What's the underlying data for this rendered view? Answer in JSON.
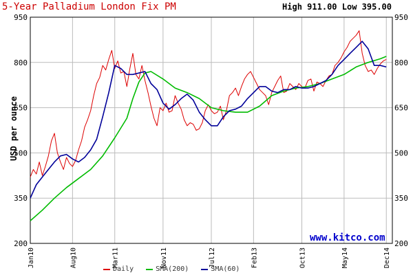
{
  "header": {
    "title": "5-Year Palladium London Fix PM",
    "high_low": "High 911.00 Low 395.00"
  },
  "watermark": "www.kitco.com",
  "colors": {
    "daily": "#dd0000",
    "sma200": "#00bb00",
    "sma60": "#000099",
    "grid": "#bbbbbb",
    "title": "#cc0000",
    "watermark": "#0000cc"
  },
  "chart_data": {
    "type": "line",
    "title": "5-Year Palladium London Fix PM",
    "ylabel": "USD per ounce",
    "ylim": [
      200,
      950
    ],
    "yticks": [
      200,
      350,
      500,
      650,
      800,
      950
    ],
    "xlim": [
      0,
      60
    ],
    "xticks": [
      {
        "label": "Jan10",
        "x": 0
      },
      {
        "label": "Aug10",
        "x": 7
      },
      {
        "label": "Mar11",
        "x": 14
      },
      {
        "label": "Nov11",
        "x": 22
      },
      {
        "label": "Jul12",
        "x": 30
      },
      {
        "label": "Feb13",
        "x": 37
      },
      {
        "label": "Oct13",
        "x": 45
      },
      {
        "label": "May14",
        "x": 52
      },
      {
        "label": "Dec14",
        "x": 59
      }
    ],
    "high": 911.0,
    "low": 395.0,
    "grid": true,
    "legend_position": "bottom",
    "series": [
      {
        "name": "Daily",
        "x": [
          0,
          0.5,
          1,
          1.5,
          2,
          2.5,
          3,
          3.5,
          4,
          4.5,
          5,
          5.5,
          6,
          6.5,
          7,
          7.5,
          8,
          8.5,
          9,
          9.5,
          10,
          10.5,
          11,
          11.5,
          12,
          12.5,
          13,
          13.5,
          14,
          14.5,
          15,
          15.5,
          16,
          16.5,
          17,
          17.5,
          18,
          18.5,
          19,
          19.5,
          20,
          20.5,
          21,
          21.5,
          22,
          22.5,
          23,
          23.5,
          24,
          24.5,
          25,
          25.5,
          26,
          26.5,
          27,
          27.5,
          28,
          28.5,
          29,
          29.5,
          30,
          30.5,
          31,
          31.5,
          32,
          32.5,
          33,
          33.5,
          34,
          34.5,
          35,
          35.5,
          36,
          36.5,
          37,
          37.5,
          38,
          38.5,
          39,
          39.5,
          40,
          40.5,
          41,
          41.5,
          42,
          42.5,
          43,
          43.5,
          44,
          44.5,
          45,
          45.5,
          46,
          46.5,
          47,
          47.5,
          48,
          48.5,
          49,
          49.5,
          50,
          50.5,
          51,
          51.5,
          52,
          52.5,
          53,
          53.5,
          54,
          54.5,
          55,
          55.5,
          56,
          56.5,
          57,
          57.5,
          58,
          58.5,
          59
        ],
        "values": [
          420,
          445,
          430,
          470,
          425,
          455,
          490,
          540,
          565,
          500,
          470,
          445,
          485,
          465,
          455,
          475,
          510,
          540,
          585,
          610,
          640,
          690,
          730,
          750,
          790,
          775,
          810,
          840,
          780,
          805,
          765,
          770,
          720,
          780,
          830,
          760,
          745,
          790,
          740,
          700,
          655,
          615,
          590,
          650,
          640,
          665,
          635,
          640,
          690,
          665,
          645,
          610,
          590,
          600,
          595,
          575,
          580,
          600,
          640,
          660,
          640,
          630,
          635,
          655,
          610,
          640,
          690,
          700,
          715,
          690,
          720,
          745,
          760,
          770,
          750,
          730,
          710,
          700,
          690,
          660,
          700,
          720,
          740,
          755,
          700,
          705,
          730,
          720,
          710,
          730,
          720,
          715,
          740,
          745,
          705,
          735,
          730,
          720,
          740,
          755,
          760,
          790,
          800,
          815,
          835,
          850,
          870,
          880,
          890,
          905,
          830,
          790,
          770,
          775,
          760,
          780,
          795,
          805,
          810
        ],
        "stroke": "#dd0000"
      },
      {
        "name": "SMA(200)",
        "x": [
          0,
          2,
          4,
          6,
          8,
          10,
          12,
          14,
          16,
          17,
          18,
          19,
          20,
          22,
          24,
          26,
          28,
          30,
          32,
          34,
          36,
          38,
          40,
          42,
          44,
          46,
          48,
          50,
          52,
          54,
          56,
          58,
          59
        ],
        "values": [
          275,
          310,
          350,
          385,
          415,
          445,
          490,
          550,
          615,
          680,
          735,
          765,
          770,
          745,
          715,
          700,
          680,
          650,
          640,
          635,
          635,
          655,
          690,
          705,
          715,
          720,
          730,
          745,
          760,
          785,
          800,
          812,
          820
        ],
        "stroke": "#00bb00"
      },
      {
        "name": "SMA(60)",
        "x": [
          0,
          1,
          2,
          3,
          4,
          5,
          6,
          7,
          8,
          9,
          10,
          11,
          12,
          13,
          14,
          15,
          16,
          17,
          18,
          19,
          20,
          21,
          22,
          23,
          24,
          25,
          26,
          27,
          28,
          29,
          30,
          31,
          32,
          33,
          34,
          35,
          36,
          37,
          38,
          39,
          40,
          41,
          42,
          43,
          44,
          45,
          46,
          47,
          48,
          49,
          50,
          51,
          52,
          53,
          54,
          55,
          56,
          57,
          58,
          59
        ],
        "values": [
          350,
          395,
          420,
          445,
          470,
          490,
          495,
          480,
          470,
          485,
          510,
          545,
          620,
          700,
          790,
          780,
          760,
          760,
          765,
          770,
          730,
          710,
          665,
          645,
          660,
          680,
          695,
          675,
          635,
          610,
          590,
          590,
          620,
          640,
          645,
          655,
          680,
          700,
          720,
          720,
          705,
          700,
          710,
          710,
          720,
          715,
          715,
          720,
          730,
          740,
          760,
          790,
          810,
          830,
          850,
          870,
          845,
          790,
          790,
          785
        ],
        "stroke": "#000099"
      }
    ]
  },
  "legend": [
    {
      "label": "Daily",
      "color": "#dd0000"
    },
    {
      "label": "SMA(200)",
      "color": "#00bb00"
    },
    {
      "label": "SMA(60)",
      "color": "#000099"
    }
  ]
}
